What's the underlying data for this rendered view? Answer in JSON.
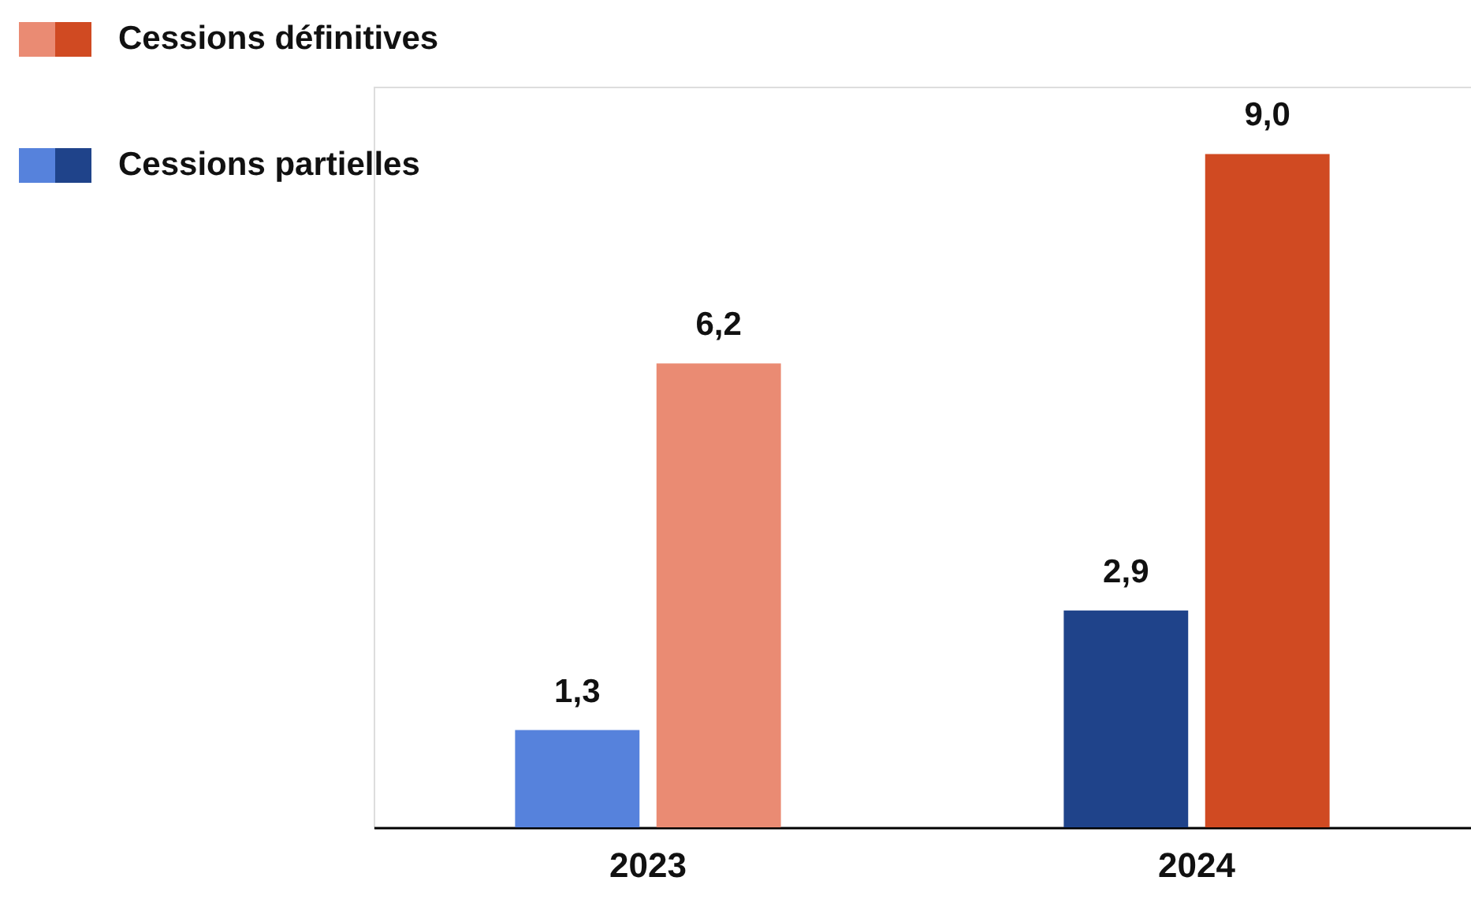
{
  "chart_data": {
    "type": "bar",
    "categories": [
      "2023",
      "2024"
    ],
    "series": [
      {
        "name": "Cessions partielles",
        "colors": [
          "#5682dc",
          "#1f438a"
        ],
        "values": [
          1.3,
          2.9
        ],
        "value_labels": [
          "1,3",
          "2,9"
        ]
      },
      {
        "name": "Cessions définitives",
        "colors": [
          "#ea8b73",
          "#d04a22"
        ],
        "values": [
          6.2,
          9.0
        ],
        "value_labels": [
          "6,2",
          "9,0"
        ]
      }
    ],
    "legend": "top left",
    "grid": false,
    "tick_labels": "x"
  }
}
